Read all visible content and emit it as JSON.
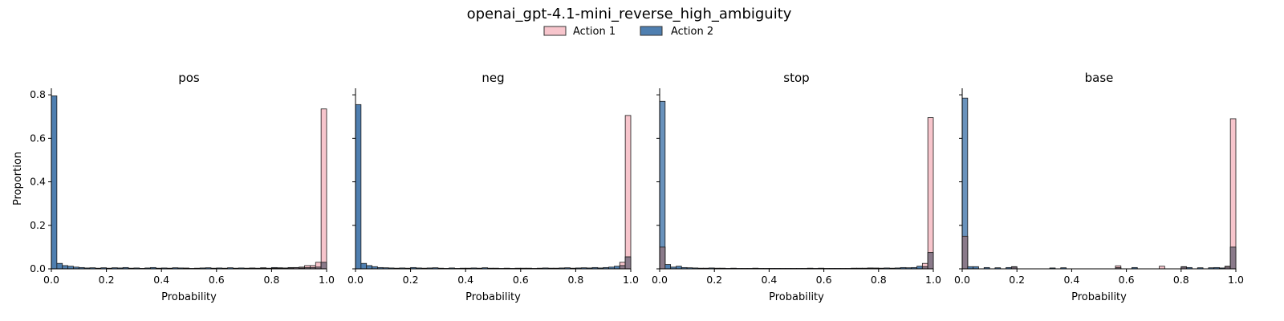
{
  "figure": {
    "title": "openai_gpt-4.1-mini_reverse_high_ambiguity"
  },
  "legend": {
    "placement": "top-center",
    "entries": [
      {
        "name": "Action 1",
        "color": "#f7c5cc"
      },
      {
        "name": "Action 2",
        "color": "#4f7fb0"
      }
    ]
  },
  "chart_data": {
    "type": "bar",
    "bins": 50,
    "xlim": [
      0,
      1
    ],
    "ylim": [
      0,
      0.83
    ],
    "xlabel": "Probability",
    "ylabel": "Proportion",
    "xticks": [
      "0.0",
      "0.2",
      "0.4",
      "0.6",
      "0.8",
      "1.0"
    ],
    "yticks": [
      "0.0",
      "0.2",
      "0.4",
      "0.6",
      "0.8"
    ],
    "xtick_values": [
      0,
      0.2,
      0.4,
      0.6,
      0.8,
      1.0
    ],
    "ytick_values": [
      0,
      0.2,
      0.4,
      0.6,
      0.8
    ],
    "shared_y": true,
    "grid": false,
    "colors": {
      "action1": "#f7c5cc",
      "action2": "#4f7fb0",
      "overlap": "#8a7a8a",
      "edge": "#1a1a1a"
    },
    "panels": [
      {
        "title": "pos",
        "series": [
          {
            "name": "Action 1",
            "values": [
              0.0,
              0.0,
              0.0,
              0.0,
              0.0,
              0.0,
              0.0,
              0.0,
              0.0,
              0.0,
              0.0,
              0.0,
              0.0,
              0.0,
              0.0,
              0.0,
              0.0,
              0.0,
              0.0,
              0.0,
              0.0,
              0.0,
              0.0,
              0.0,
              0.003,
              0.0,
              0.0,
              0.0,
              0.0,
              0.0,
              0.0,
              0.0,
              0.0,
              0.0,
              0.0,
              0.0,
              0.002,
              0.0,
              0.003,
              0.0,
              0.003,
              0.005,
              0.004,
              0.006,
              0.005,
              0.008,
              0.015,
              0.015,
              0.03,
              0.735
            ]
          },
          {
            "name": "Action 2",
            "values": [
              0.795,
              0.025,
              0.015,
              0.012,
              0.008,
              0.006,
              0.004,
              0.005,
              0.003,
              0.005,
              0.003,
              0.005,
              0.004,
              0.006,
              0.003,
              0.004,
              0.002,
              0.004,
              0.006,
              0.003,
              0.004,
              0.003,
              0.005,
              0.004,
              0.003,
              0.002,
              0.003,
              0.004,
              0.005,
              0.003,
              0.004,
              0.003,
              0.005,
              0.003,
              0.004,
              0.003,
              0.004,
              0.003,
              0.005,
              0.003,
              0.006,
              0.003,
              0.003,
              0.004,
              0.006,
              0.004,
              0.005,
              0.006,
              0.008,
              0.03
            ]
          }
        ]
      },
      {
        "title": "neg",
        "series": [
          {
            "name": "Action 1",
            "values": [
              0.0,
              0.0,
              0.0,
              0.0,
              0.0,
              0.0,
              0.0,
              0.0,
              0.0,
              0.0,
              0.0,
              0.0,
              0.0,
              0.0,
              0.0,
              0.0,
              0.0,
              0.0,
              0.0,
              0.0,
              0.0,
              0.0,
              0.0,
              0.0,
              0.0,
              0.0,
              0.0,
              0.0,
              0.0,
              0.0,
              0.0,
              0.0,
              0.0,
              0.0,
              0.0,
              0.0,
              0.0,
              0.0,
              0.0,
              0.0,
              0.0,
              0.0,
              0.0,
              0.0,
              0.0,
              0.0,
              0.0,
              0.0,
              0.03,
              0.705
            ]
          },
          {
            "name": "Action 2",
            "values": [
              0.755,
              0.025,
              0.015,
              0.01,
              0.006,
              0.005,
              0.004,
              0.003,
              0.004,
              0.003,
              0.006,
              0.004,
              0.003,
              0.004,
              0.005,
              0.003,
              0.002,
              0.004,
              0.002,
              0.003,
              0.003,
              0.004,
              0.003,
              0.005,
              0.003,
              0.003,
              0.002,
              0.003,
              0.002,
              0.003,
              0.003,
              0.003,
              0.002,
              0.003,
              0.004,
              0.003,
              0.003,
              0.004,
              0.005,
              0.003,
              0.004,
              0.005,
              0.004,
              0.006,
              0.004,
              0.006,
              0.008,
              0.012,
              0.015,
              0.055
            ]
          }
        ]
      },
      {
        "title": "stop",
        "series": [
          {
            "name": "Action 1",
            "values": [
              0.1,
              0.0,
              0.0,
              0.0,
              0.0,
              0.0,
              0.0,
              0.0,
              0.0,
              0.0,
              0.0,
              0.0,
              0.0,
              0.0,
              0.0,
              0.0,
              0.0,
              0.0,
              0.0,
              0.0,
              0.0,
              0.0,
              0.0,
              0.0,
              0.0,
              0.0,
              0.0,
              0.0,
              0.0,
              0.0,
              0.0,
              0.0,
              0.0,
              0.0,
              0.0,
              0.0,
              0.0,
              0.0,
              0.003,
              0.003,
              0.0,
              0.0,
              0.0,
              0.0,
              0.0,
              0.0,
              0.0,
              0.0,
              0.025,
              0.695
            ]
          },
          {
            "name": "Action 2",
            "values": [
              0.77,
              0.02,
              0.008,
              0.012,
              0.006,
              0.005,
              0.004,
              0.003,
              0.003,
              0.004,
              0.003,
              0.003,
              0.002,
              0.003,
              0.002,
              0.002,
              0.002,
              0.003,
              0.002,
              0.002,
              0.002,
              0.002,
              0.002,
              0.002,
              0.002,
              0.002,
              0.002,
              0.003,
              0.002,
              0.003,
              0.002,
              0.002,
              0.002,
              0.002,
              0.002,
              0.003,
              0.003,
              0.003,
              0.004,
              0.003,
              0.003,
              0.004,
              0.003,
              0.004,
              0.006,
              0.005,
              0.006,
              0.012,
              0.01,
              0.075
            ]
          }
        ]
      },
      {
        "title": "base",
        "series": [
          {
            "name": "Action 1",
            "values": [
              0.15,
              0.0,
              0.0,
              0.0,
              0.0,
              0.0,
              0.0,
              0.0,
              0.0,
              0.008,
              0.0,
              0.0,
              0.0,
              0.0,
              0.0,
              0.0,
              0.0,
              0.0,
              0.0,
              0.0,
              0.0,
              0.0,
              0.0,
              0.0,
              0.0,
              0.0,
              0.0,
              0.0,
              0.014,
              0.0,
              0.0,
              0.0,
              0.0,
              0.0,
              0.0,
              0.0,
              0.012,
              0.0,
              0.0,
              0.0,
              0.01,
              0.0,
              0.0,
              0.0,
              0.0,
              0.0,
              0.0,
              0.0,
              0.012,
              0.69
            ]
          },
          {
            "name": "Action 2",
            "values": [
              0.785,
              0.01,
              0.01,
              0.0,
              0.006,
              0.0,
              0.005,
              0.0,
              0.006,
              0.01,
              0.0,
              0.0,
              0.0,
              0.0,
              0.0,
              0.0,
              0.004,
              0.0,
              0.005,
              0.0,
              0.0,
              0.0,
              0.0,
              0.0,
              0.0,
              0.0,
              0.0,
              0.0,
              0.005,
              0.0,
              0.0,
              0.006,
              0.0,
              0.0,
              0.0,
              0.0,
              0.0,
              0.0,
              0.0,
              0.0,
              0.008,
              0.006,
              0.0,
              0.005,
              0.0,
              0.005,
              0.006,
              0.004,
              0.008,
              0.1
            ]
          }
        ]
      }
    ]
  }
}
